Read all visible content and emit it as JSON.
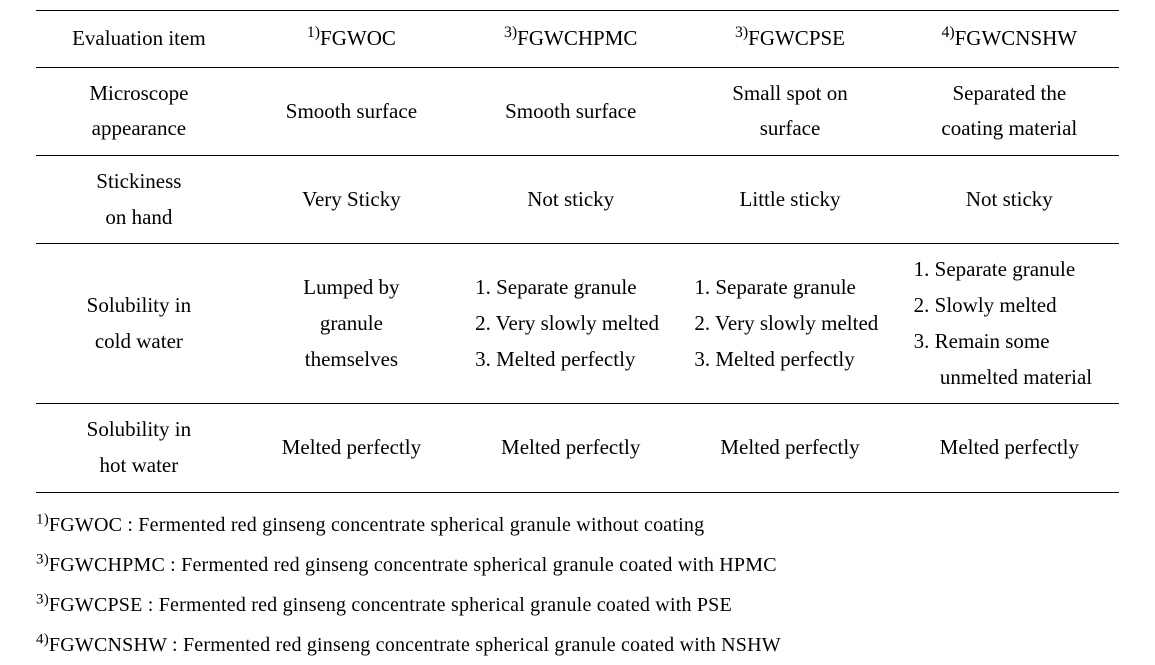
{
  "table": {
    "columns": [
      {
        "label": "Evaluation item",
        "sup": ""
      },
      {
        "label": "FGWOC",
        "sup": "1)"
      },
      {
        "label": "FGWCHPMC",
        "sup": "3)"
      },
      {
        "label": "FGWCPSE",
        "sup": "3)"
      },
      {
        "label": "FGWCNSHW",
        "sup": "4)"
      }
    ],
    "rows": [
      {
        "label_l1": "Microscope",
        "label_l2": "appearance",
        "c1": "Smooth surface",
        "c2": "Smooth surface",
        "c3_l1": "Small spot on",
        "c3_l2": "surface",
        "c4_l1": "Separated the",
        "c4_l2": "coating material"
      },
      {
        "label_l1": "Stickiness",
        "label_l2": "on hand",
        "c1": "Very Sticky",
        "c2": "Not sticky",
        "c3": "Little sticky",
        "c4": "Not sticky"
      },
      {
        "label_l1": "Solubility in",
        "label_l2": "cold water",
        "c1_l1": "Lumped by",
        "c1_l2": "granule",
        "c1_l3": "themselves",
        "c2_i1": "1. Separate granule",
        "c2_i2": "2. Very slowly melted",
        "c2_i3": "3. Melted perfectly",
        "c3_i1": "1. Separate granule",
        "c3_i2": "2. Very slowly melted",
        "c3_i3": "3. Melted perfectly",
        "c4_i1": "1. Separate granule",
        "c4_i2": "2. Slowly melted",
        "c4_i3": "3. Remain some unmelted material"
      },
      {
        "label_l1": "Solubility in",
        "label_l2": "hot water",
        "c1": "Melted perfectly",
        "c2": "Melted perfectly",
        "c3": "Melted perfectly",
        "c4": "Melted perfectly"
      }
    ],
    "border_color": "#000000",
    "font_size_pt": 16,
    "background_color": "#ffffff"
  },
  "footnotes": [
    {
      "sup": "1)",
      "term": "FGWOC",
      "desc": " : Fermented red ginseng concentrate spherical granule without coating"
    },
    {
      "sup": "3)",
      "term": "FGWCHPMC",
      "desc": " : Fermented red ginseng concentrate spherical granule coated with HPMC"
    },
    {
      "sup": "3)",
      "term": "FGWCPSE",
      "desc": " : Fermented red ginseng concentrate spherical granule coated with PSE"
    },
    {
      "sup": "4)",
      "term": "FGWCNSHW",
      "desc": " : Fermented red ginseng concentrate spherical granule coated with NSHW"
    }
  ]
}
